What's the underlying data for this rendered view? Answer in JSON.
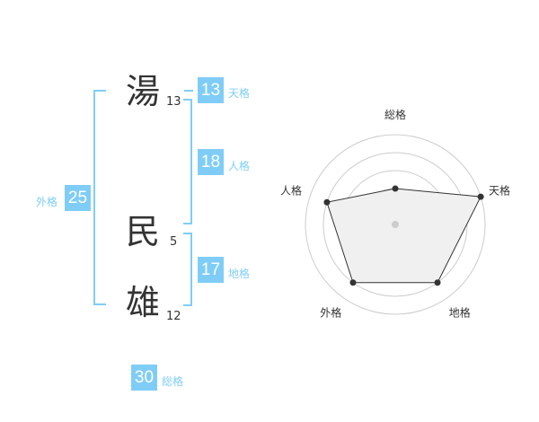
{
  "name": {
    "chars": [
      {
        "char": "湯",
        "strokes": "13"
      },
      {
        "char": "民",
        "strokes": "5"
      },
      {
        "char": "雄",
        "strokes": "12"
      }
    ]
  },
  "kaku": {
    "tenkaku": {
      "value": "13",
      "label": "天格"
    },
    "jinkaku": {
      "value": "18",
      "label": "人格"
    },
    "chikaku": {
      "value": "17",
      "label": "地格"
    },
    "gaikaku": {
      "value": "25",
      "label": "外格"
    },
    "soukaku": {
      "value": "30",
      "label": "総格"
    }
  },
  "colors": {
    "accent": "#7fcdf7",
    "text": "#333333",
    "fill": "#f0f0f0"
  },
  "chart_data": {
    "type": "radar",
    "axes": [
      "総格",
      "天格",
      "地格",
      "外格",
      "人格"
    ],
    "values": [
      2,
      5,
      4,
      4,
      4
    ],
    "range": [
      0,
      5
    ],
    "rings": 5
  }
}
